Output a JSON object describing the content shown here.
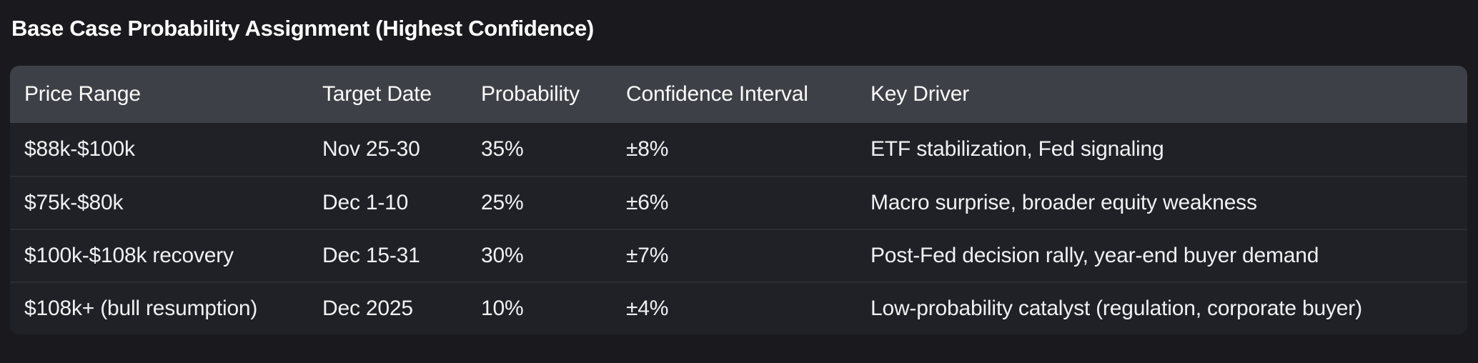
{
  "page": {
    "title": "Base Case Probability Assignment (Highest Confidence)",
    "background_color": "#1a1a1e"
  },
  "table": {
    "background_color": "#202126",
    "header_background_color": "#3e4047",
    "divider_color": "#2c2d33",
    "text_color": "#f1f1f3",
    "columns": [
      "Price Range",
      "Target Date",
      "Probability",
      "Confidence Interval",
      "Key Driver"
    ],
    "rows": [
      [
        "$88k-$100k",
        "Nov 25-30",
        "35%",
        "±8%",
        "ETF stabilization, Fed signaling"
      ],
      [
        "$75k-$80k",
        "Dec 1-10",
        "25%",
        "±6%",
        "Macro surprise, broader equity weakness"
      ],
      [
        "$100k-$108k recovery",
        "Dec 15-31",
        "30%",
        "±7%",
        "Post-Fed decision rally, year-end buyer demand"
      ],
      [
        "$108k+ (bull resumption)",
        "Dec 2025",
        "10%",
        "±4%",
        "Low-probability catalyst (regulation, corporate buyer)"
      ]
    ]
  }
}
